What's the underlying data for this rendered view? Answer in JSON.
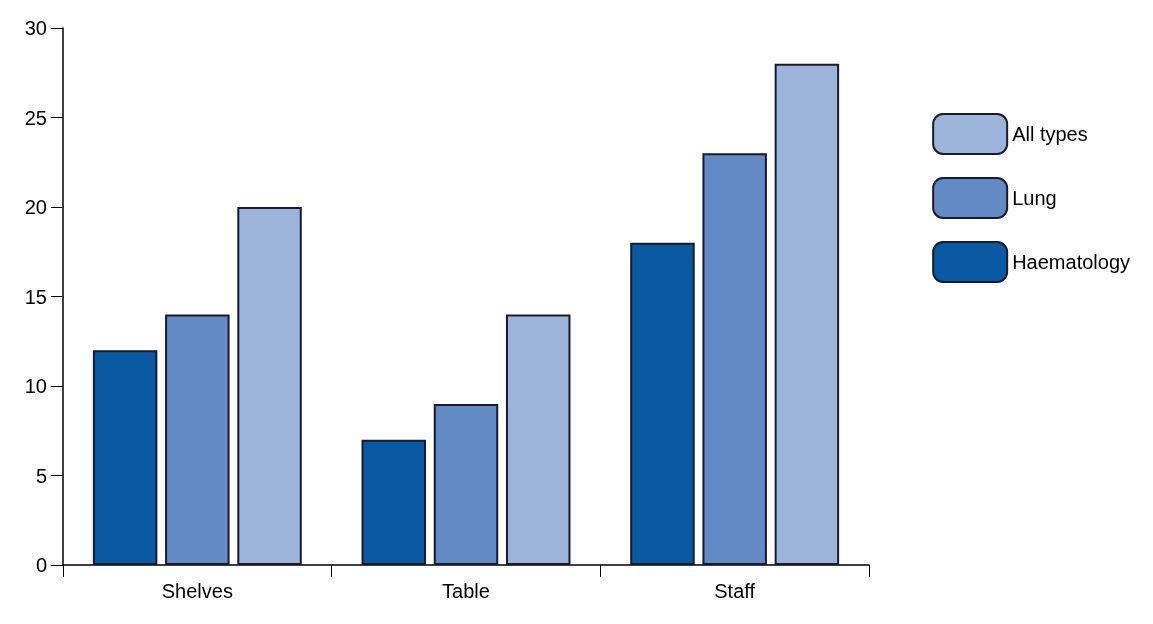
{
  "chart_data": {
    "type": "bar",
    "categories": [
      "Shelves",
      "Table",
      "Staff"
    ],
    "series": [
      {
        "name": "Haematology",
        "color": "#0a5aa3",
        "values": [
          12,
          7,
          18
        ]
      },
      {
        "name": "Lung",
        "color": "#628ac4",
        "values": [
          14,
          9,
          23
        ]
      },
      {
        "name": "All types",
        "color": "#9cb4da",
        "values": [
          20,
          14,
          28
        ]
      }
    ],
    "ylim": [
      0,
      30
    ],
    "yticks": [
      0,
      5,
      10,
      15,
      20,
      25,
      30
    ],
    "grid": false,
    "legend": "right"
  }
}
